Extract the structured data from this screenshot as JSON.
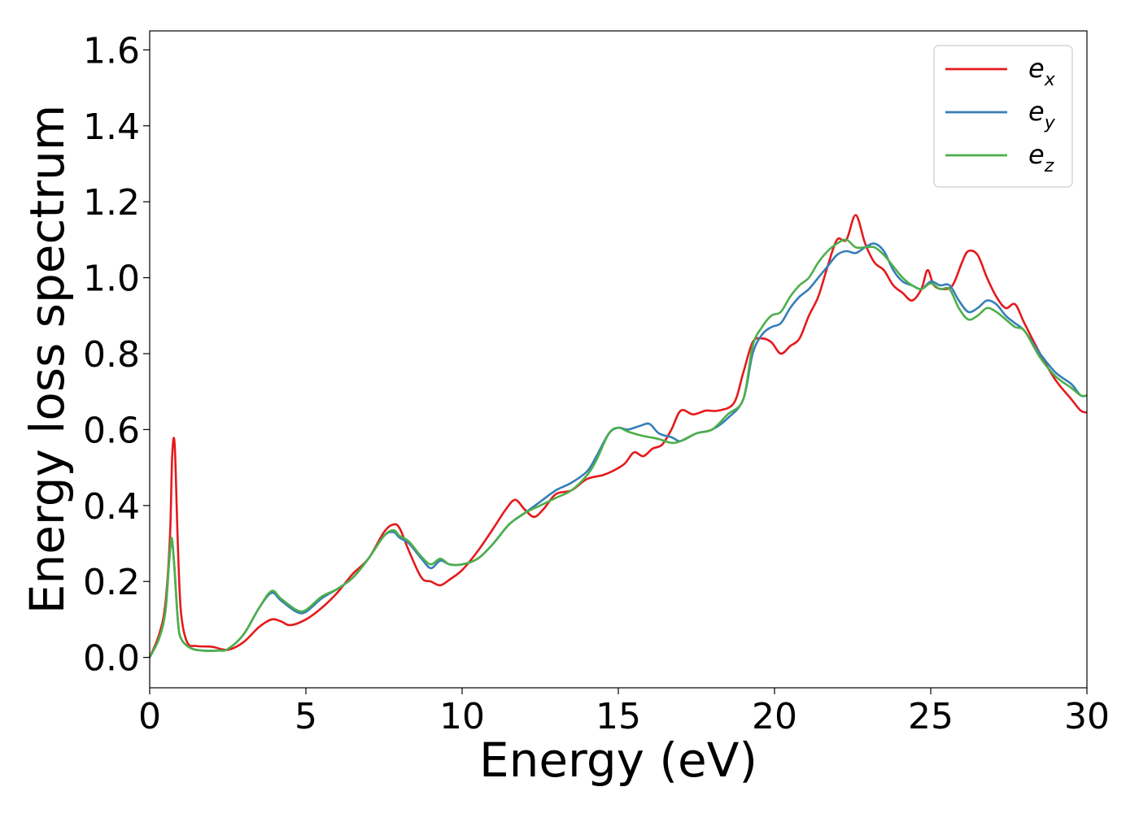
{
  "chart_data": {
    "type": "line",
    "title": "",
    "xlabel": "Energy (eV)",
    "ylabel": "Energy loss spectrum",
    "xlim": [
      0,
      30
    ],
    "ylim": [
      -0.08,
      1.65
    ],
    "xticks": [
      0,
      5,
      10,
      15,
      20,
      25,
      30
    ],
    "yticks": [
      "0.0",
      "0.2",
      "0.4",
      "0.6",
      "0.8",
      "1.0",
      "1.2",
      "1.4",
      "1.6"
    ],
    "grid": false,
    "legend_position": "top-right",
    "series": [
      {
        "name": "e",
        "subscript": "x",
        "color": "#e41a1c",
        "x": [
          0,
          0.3,
          0.5,
          0.65,
          0.72,
          0.8,
          0.9,
          1.0,
          1.2,
          1.5,
          2.0,
          2.5,
          3.0,
          3.5,
          3.9,
          4.2,
          4.5,
          5.0,
          5.5,
          6.0,
          6.5,
          7.0,
          7.5,
          7.8,
          8.0,
          8.3,
          8.7,
          9.0,
          9.3,
          9.6,
          10.0,
          10.5,
          11.0,
          11.4,
          11.7,
          12.0,
          12.3,
          12.6,
          13.0,
          13.5,
          14.0,
          14.5,
          14.8,
          15.2,
          15.5,
          15.8,
          16.1,
          16.4,
          16.7,
          17.0,
          17.4,
          17.8,
          18.2,
          18.7,
          19.0,
          19.3,
          19.6,
          19.9,
          20.2,
          20.5,
          20.8,
          21.1,
          21.4,
          21.7,
          22.0,
          22.3,
          22.6,
          22.9,
          23.2,
          23.5,
          23.8,
          24.1,
          24.4,
          24.7,
          24.9,
          25.1,
          25.4,
          25.7,
          26.0,
          26.2,
          26.5,
          26.8,
          27.1,
          27.4,
          27.7,
          28.0,
          28.5,
          29.0,
          29.5,
          29.8,
          30.0
        ],
        "y": [
          0.0,
          0.06,
          0.14,
          0.32,
          0.53,
          0.56,
          0.3,
          0.12,
          0.04,
          0.03,
          0.028,
          0.02,
          0.04,
          0.08,
          0.1,
          0.095,
          0.085,
          0.1,
          0.13,
          0.17,
          0.22,
          0.26,
          0.33,
          0.35,
          0.34,
          0.28,
          0.21,
          0.2,
          0.19,
          0.205,
          0.23,
          0.28,
          0.34,
          0.39,
          0.415,
          0.39,
          0.37,
          0.39,
          0.43,
          0.44,
          0.47,
          0.48,
          0.49,
          0.51,
          0.54,
          0.53,
          0.55,
          0.56,
          0.6,
          0.65,
          0.64,
          0.65,
          0.65,
          0.67,
          0.75,
          0.83,
          0.84,
          0.83,
          0.8,
          0.82,
          0.84,
          0.9,
          0.95,
          1.03,
          1.1,
          1.1,
          1.165,
          1.09,
          1.04,
          1.02,
          0.98,
          0.96,
          0.94,
          0.97,
          1.02,
          0.98,
          0.97,
          0.98,
          1.04,
          1.07,
          1.06,
          1.0,
          0.95,
          0.92,
          0.93,
          0.88,
          0.8,
          0.73,
          0.68,
          0.65,
          0.645
        ]
      },
      {
        "name": "e",
        "subscript": "y",
        "color": "#377eb8",
        "x": [
          0,
          0.3,
          0.5,
          0.62,
          0.7,
          0.78,
          0.9,
          1.0,
          1.3,
          1.7,
          2.2,
          2.5,
          3.0,
          3.5,
          3.9,
          4.2,
          4.7,
          5.0,
          5.5,
          6.0,
          6.5,
          7.0,
          7.5,
          7.8,
          8.0,
          8.3,
          8.7,
          9.0,
          9.3,
          9.6,
          10.0,
          10.5,
          11.0,
          11.5,
          12.0,
          12.5,
          13.0,
          13.5,
          14.0,
          14.3,
          14.7,
          15.0,
          15.3,
          15.7,
          16.0,
          16.3,
          16.7,
          17.0,
          17.5,
          18.0,
          18.5,
          19.0,
          19.3,
          19.6,
          19.9,
          20.2,
          20.5,
          20.8,
          21.1,
          21.4,
          21.7,
          22.0,
          22.3,
          22.6,
          22.9,
          23.2,
          23.5,
          23.8,
          24.1,
          24.4,
          24.7,
          25.0,
          25.3,
          25.6,
          25.9,
          26.2,
          26.5,
          26.8,
          27.1,
          27.4,
          27.7,
          28.0,
          28.5,
          29.0,
          29.5,
          29.8,
          30.0
        ],
        "y": [
          0.0,
          0.05,
          0.12,
          0.25,
          0.31,
          0.25,
          0.1,
          0.05,
          0.025,
          0.018,
          0.018,
          0.022,
          0.06,
          0.13,
          0.17,
          0.15,
          0.12,
          0.12,
          0.155,
          0.18,
          0.21,
          0.26,
          0.32,
          0.33,
          0.315,
          0.3,
          0.26,
          0.235,
          0.255,
          0.245,
          0.245,
          0.26,
          0.3,
          0.35,
          0.38,
          0.41,
          0.44,
          0.46,
          0.49,
          0.53,
          0.59,
          0.605,
          0.6,
          0.61,
          0.615,
          0.59,
          0.58,
          0.57,
          0.59,
          0.6,
          0.63,
          0.68,
          0.8,
          0.85,
          0.87,
          0.88,
          0.92,
          0.95,
          0.97,
          1.0,
          1.03,
          1.06,
          1.07,
          1.065,
          1.08,
          1.09,
          1.07,
          1.02,
          0.99,
          0.98,
          0.97,
          0.99,
          0.98,
          0.98,
          0.94,
          0.91,
          0.92,
          0.94,
          0.93,
          0.9,
          0.88,
          0.86,
          0.8,
          0.75,
          0.72,
          0.69,
          0.69
        ]
      },
      {
        "name": "e",
        "subscript": "z",
        "color": "#4daf4a",
        "x": [
          0,
          0.3,
          0.5,
          0.62,
          0.7,
          0.78,
          0.9,
          1.0,
          1.3,
          1.7,
          2.2,
          2.5,
          3.0,
          3.5,
          3.9,
          4.2,
          4.7,
          5.0,
          5.5,
          6.0,
          6.5,
          7.0,
          7.5,
          7.8,
          8.0,
          8.3,
          8.7,
          9.0,
          9.3,
          9.6,
          10.0,
          10.5,
          11.0,
          11.5,
          12.0,
          12.5,
          13.0,
          13.5,
          14.0,
          14.3,
          14.7,
          15.0,
          15.3,
          15.7,
          16.0,
          16.3,
          16.7,
          17.0,
          17.5,
          18.0,
          18.5,
          19.0,
          19.3,
          19.6,
          19.9,
          20.2,
          20.5,
          20.8,
          21.1,
          21.4,
          21.7,
          22.0,
          22.3,
          22.6,
          22.9,
          23.2,
          23.5,
          23.8,
          24.1,
          24.4,
          24.7,
          25.0,
          25.3,
          25.6,
          25.9,
          26.2,
          26.5,
          26.8,
          27.1,
          27.4,
          27.7,
          28.0,
          28.5,
          29.0,
          29.5,
          29.8,
          30.0
        ],
        "y": [
          0.0,
          0.05,
          0.12,
          0.25,
          0.315,
          0.25,
          0.1,
          0.05,
          0.025,
          0.018,
          0.018,
          0.022,
          0.06,
          0.13,
          0.175,
          0.155,
          0.125,
          0.125,
          0.16,
          0.18,
          0.21,
          0.26,
          0.32,
          0.335,
          0.32,
          0.305,
          0.265,
          0.245,
          0.26,
          0.245,
          0.245,
          0.26,
          0.3,
          0.35,
          0.38,
          0.4,
          0.42,
          0.44,
          0.48,
          0.52,
          0.59,
          0.605,
          0.595,
          0.585,
          0.58,
          0.575,
          0.565,
          0.57,
          0.59,
          0.6,
          0.64,
          0.68,
          0.82,
          0.87,
          0.9,
          0.91,
          0.95,
          0.98,
          1.0,
          1.04,
          1.07,
          1.09,
          1.1,
          1.08,
          1.08,
          1.08,
          1.06,
          1.03,
          1.0,
          0.98,
          0.97,
          0.985,
          0.97,
          0.97,
          0.92,
          0.89,
          0.9,
          0.92,
          0.91,
          0.89,
          0.87,
          0.86,
          0.79,
          0.74,
          0.71,
          0.69,
          0.69
        ]
      }
    ]
  }
}
